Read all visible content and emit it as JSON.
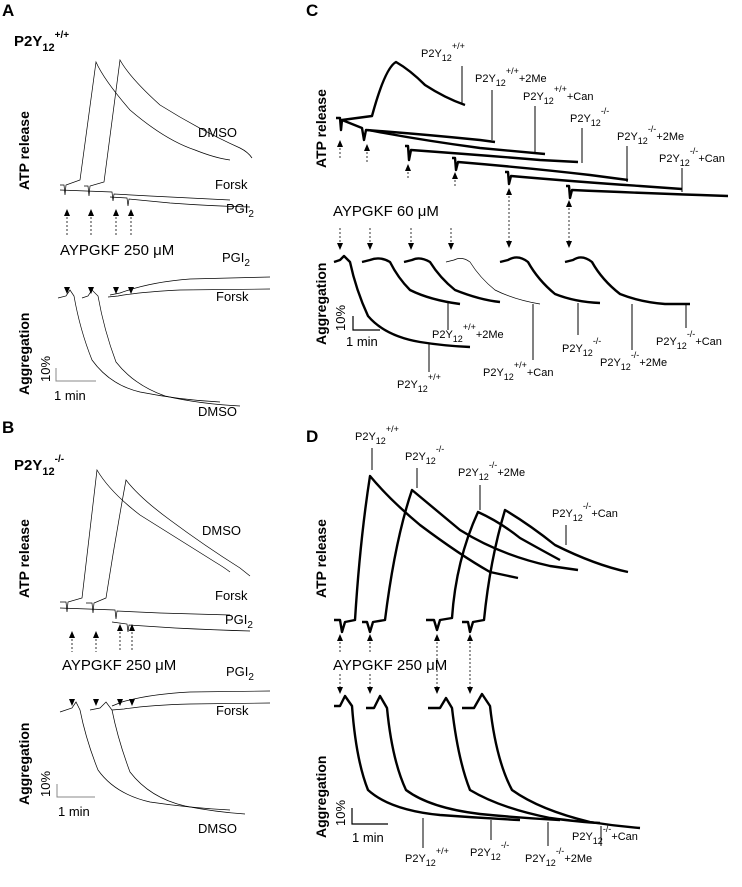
{
  "chart_data": [
    {
      "panel": "A",
      "type": "line",
      "genotype": {
        "base": "P2Y",
        "sub": "12",
        "sup": "+/+"
      },
      "agonist": "AYPGKF 250 μM",
      "ylabel_top": "ATP release",
      "ylabel_bottom": "Aggregation",
      "scale_y": "10%",
      "scale_x": "1 min",
      "atp_labels": [
        "DMSO",
        "Forsk",
        "PGI2"
      ],
      "agg_labels": [
        "PGI2",
        "Forsk",
        "DMSO"
      ]
    },
    {
      "panel": "B",
      "type": "line",
      "genotype": {
        "base": "P2Y",
        "sub": "12",
        "sup": "-/-"
      },
      "agonist": "AYPGKF 250 μM",
      "ylabel_top": "ATP release",
      "ylabel_bottom": "Aggregation",
      "scale_y": "10%",
      "scale_x": "1 min",
      "atp_labels": [
        "DMSO",
        "Forsk",
        "PGI2"
      ],
      "agg_labels": [
        "PGI2",
        "Forsk",
        "DMSO"
      ]
    },
    {
      "panel": "C",
      "type": "line",
      "agonist": "AYPGKF 60 μM",
      "ylabel_top": "ATP release",
      "ylabel_bottom": "Aggregation",
      "scale_y": "10%",
      "scale_x": "1 min",
      "series": [
        {
          "name": "P2Y12 +/+",
          "base": "P2Y",
          "sub": "12",
          "sup": "+/+",
          "suffix": ""
        },
        {
          "name": "P2Y12 +/+ +2Me",
          "base": "P2Y",
          "sub": "12",
          "sup": "+/+",
          "suffix": "+2Me"
        },
        {
          "name": "P2Y12 +/+ +Can",
          "base": "P2Y",
          "sub": "12",
          "sup": "+/+",
          "suffix": "+Can"
        },
        {
          "name": "P2Y12 -/-",
          "base": "P2Y",
          "sub": "12",
          "sup": "-/-",
          "suffix": ""
        },
        {
          "name": "P2Y12 -/- +2Me",
          "base": "P2Y",
          "sub": "12",
          "sup": "-/-",
          "suffix": "+2Me"
        },
        {
          "name": "P2Y12 -/- +Can",
          "base": "P2Y",
          "sub": "12",
          "sup": "-/-",
          "suffix": "+Can"
        }
      ]
    },
    {
      "panel": "D",
      "type": "line",
      "agonist": "AYPGKF 250 μM",
      "ylabel_top": "ATP release",
      "ylabel_bottom": "Aggregation",
      "scale_y": "10%",
      "scale_x": "1 min",
      "series": [
        {
          "name": "P2Y12 +/+",
          "base": "P2Y",
          "sub": "12",
          "sup": "+/+",
          "suffix": ""
        },
        {
          "name": "P2Y12 -/-",
          "base": "P2Y",
          "sub": "12",
          "sup": "-/-",
          "suffix": ""
        },
        {
          "name": "P2Y12 -/- +2Me",
          "base": "P2Y",
          "sub": "12",
          "sup": "-/-",
          "suffix": "+2Me"
        },
        {
          "name": "P2Y12 -/- +Can",
          "base": "P2Y",
          "sub": "12",
          "sup": "-/-",
          "suffix": "+Can"
        }
      ]
    }
  ]
}
